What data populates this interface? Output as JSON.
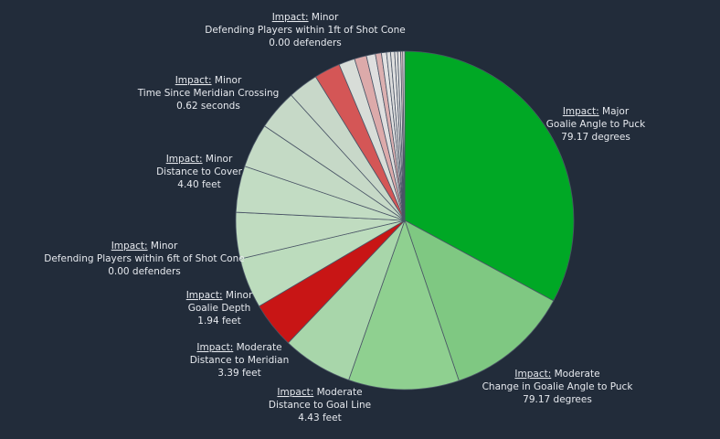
{
  "chart_data": {
    "type": "pie",
    "start_angle_deg": 0,
    "direction": "clockwise",
    "slices": [
      {
        "impact_label": "Impact:",
        "impact": "Major",
        "feature": "Goalie Angle to Puck",
        "value_text": "79.17 degrees",
        "share": 0.342,
        "color": "#00a825"
      },
      {
        "impact_label": "Impact:",
        "impact": "Moderate",
        "feature": "Change in Goalie Angle to Puck",
        "value_text": "79.17 degrees",
        "share": 0.124,
        "color": "#7fc882"
      },
      {
        "impact_label": "Impact:",
        "impact": "Moderate",
        "feature": "Distance to Goal Line",
        "value_text": "4.43 feet",
        "share": 0.11,
        "color": "#8fd090"
      },
      {
        "impact_label": "Impact:",
        "impact": "Moderate",
        "feature": "Distance to Meridian",
        "value_text": "3.39 feet",
        "share": 0.07,
        "color": "#a8d6aa"
      },
      {
        "impact_label": "Impact:",
        "impact": "Minor",
        "feature": "Goalie Depth",
        "value_text": "1.94 feet",
        "share": 0.046,
        "color": "#c81515"
      },
      {
        "impact_label": "Impact:",
        "impact": "Minor",
        "feature": "Defending Players within 6ft of Shot Cone",
        "value_text": "0.00 defenders",
        "share": 0.05,
        "color": "#bcdcbd"
      },
      {
        "share": 0.046,
        "color": "#c0dcc0"
      },
      {
        "impact_label": "Impact:",
        "impact": "Minor",
        "feature": "Distance to Cover",
        "value_text": "4.40 feet",
        "share": 0.046,
        "color": "#c2dcc3"
      },
      {
        "share": 0.044,
        "color": "#c4dac5"
      },
      {
        "share": 0.04,
        "color": "#c6d9c7"
      },
      {
        "impact_label": "Impact:",
        "impact": "Minor",
        "feature": "Time Since Meridian Crossing",
        "value_text": "0.62 seconds",
        "share": 0.03,
        "color": "#c8d8c9"
      },
      {
        "share": 0.026,
        "color": "#d45656"
      },
      {
        "share": 0.016,
        "color": "#d8ddd8"
      },
      {
        "share": 0.012,
        "color": "#dcaaaa"
      },
      {
        "share": 0.009,
        "color": "#dfdfdf"
      },
      {
        "share": 0.006,
        "color": "#dcb0b0"
      },
      {
        "share": 0.005,
        "color": "#e2e2e2"
      },
      {
        "share": 0.004,
        "color": "#dddddd"
      },
      {
        "share": 0.004,
        "color": "#e0e0e0"
      },
      {
        "share": 0.003,
        "color": "#dedede"
      },
      {
        "share": 0.003,
        "color": "#e3e3e3"
      },
      {
        "share": 0.002,
        "color": "#e0c8c8"
      },
      {
        "impact_label": "Impact:",
        "impact": "Minor",
        "feature": "Defending Players within 1ft of Shot Cone",
        "value_text": "0.00 defenders",
        "share": 0.002,
        "color": "#e4e4e4"
      }
    ]
  }
}
